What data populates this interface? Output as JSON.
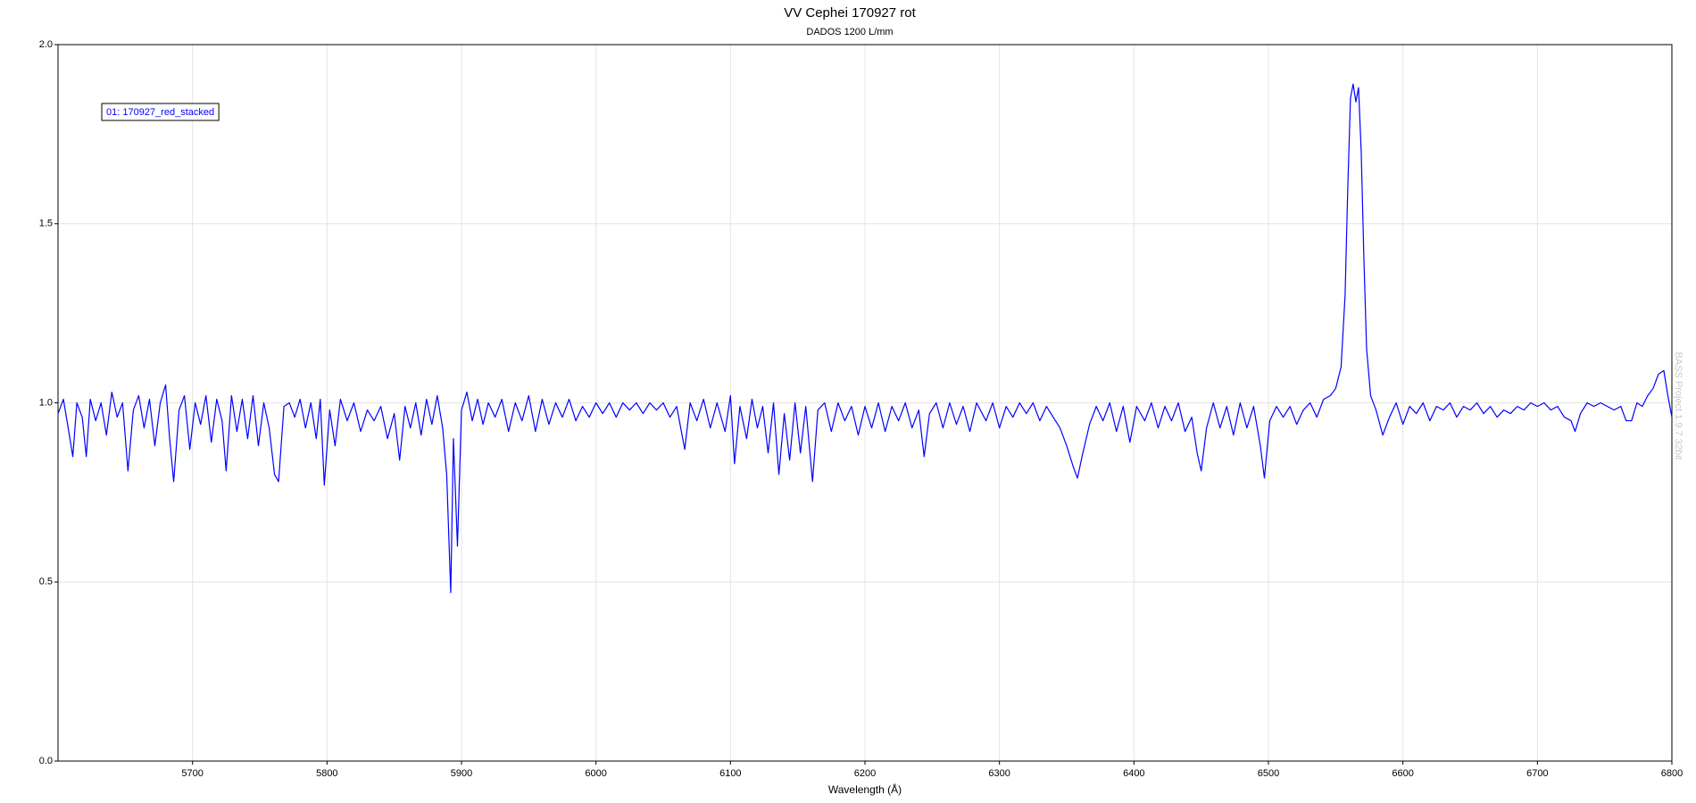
{
  "chart_data": {
    "type": "line",
    "title": "VV Cephei 170927 rot",
    "subtitle": "DADOS 1200 L/mm",
    "x_label": "Wavelength (Å)",
    "watermark": "BASS Project 1.9.7 32bit",
    "xlim": [
      5600,
      6800
    ],
    "ylim": [
      0,
      2
    ],
    "xticks": [
      5700,
      5800,
      5900,
      6000,
      6100,
      6200,
      6300,
      6400,
      6500,
      6600,
      6700,
      6800
    ],
    "yticks": [
      {
        "value": 0,
        "label": "0.0"
      },
      {
        "value": 0.5,
        "label": "0.5"
      },
      {
        "value": 1,
        "label": "1.0"
      },
      {
        "value": 1.5,
        "label": "1.5"
      },
      {
        "value": 2,
        "label": "2.0"
      }
    ],
    "grid": true,
    "legend": "upper left",
    "x": [
      5600,
      5604,
      5608,
      5611,
      5614,
      5618,
      5621,
      5624,
      5628,
      5632,
      5636,
      5640,
      5644,
      5648,
      5652,
      5656,
      5660,
      5664,
      5668,
      5672,
      5676,
      5680,
      5683,
      5686,
      5690,
      5694,
      5698,
      5702,
      5706,
      5710,
      5714,
      5718,
      5722,
      5725,
      5729,
      5733,
      5737,
      5741,
      5745,
      5749,
      5753,
      5757,
      5761,
      5764,
      5768,
      5772,
      5776,
      5780,
      5784,
      5788,
      5792,
      5795,
      5798,
      5802,
      5806,
      5810,
      5815,
      5820,
      5825,
      5830,
      5835,
      5840,
      5845,
      5850,
      5854,
      5858,
      5862,
      5866,
      5870,
      5874,
      5878,
      5882,
      5886,
      5889,
      5892,
      5894,
      5897,
      5900,
      5904,
      5908,
      5912,
      5916,
      5920,
      5925,
      5930,
      5935,
      5940,
      5945,
      5950,
      5955,
      5960,
      5965,
      5970,
      5975,
      5980,
      5985,
      5990,
      5995,
      6000,
      6005,
      6010,
      6015,
      6020,
      6025,
      6030,
      6035,
      6040,
      6045,
      6050,
      6055,
      6060,
      6066,
      6070,
      6075,
      6080,
      6085,
      6090,
      6096,
      6100,
      6103,
      6107,
      6112,
      6116,
      6120,
      6124,
      6128,
      6132,
      6136,
      6140,
      6144,
      6148,
      6152,
      6156,
      6161,
      6165,
      6170,
      6175,
      6180,
      6185,
      6190,
      6195,
      6200,
      6205,
      6210,
      6215,
      6220,
      6225,
      6230,
      6235,
      6240,
      6244,
      6248,
      6253,
      6258,
      6263,
      6268,
      6273,
      6278,
      6283,
      6290,
      6295,
      6300,
      6305,
      6310,
      6315,
      6320,
      6325,
      6330,
      6335,
      6340,
      6345,
      6350,
      6355,
      6358,
      6362,
      6367,
      6372,
      6377,
      6382,
      6387,
      6392,
      6397,
      6402,
      6408,
      6413,
      6418,
      6423,
      6428,
      6433,
      6438,
      6443,
      6447,
      6450,
      6454,
      6459,
      6464,
      6469,
      6474,
      6479,
      6484,
      6489,
      6494,
      6497,
      6501,
      6506,
      6511,
      6516,
      6521,
      6526,
      6531,
      6536,
      6541,
      6546,
      6550,
      6554,
      6557,
      6559,
      6561,
      6563,
      6565,
      6567,
      6569,
      6571,
      6573,
      6576,
      6580,
      6585,
      6590,
      6595,
      6600,
      6605,
      6610,
      6615,
      6620,
      6625,
      6630,
      6635,
      6640,
      6645,
      6650,
      6655,
      6660,
      6665,
      6670,
      6675,
      6680,
      6685,
      6690,
      6695,
      6700,
      6705,
      6710,
      6715,
      6720,
      6725,
      6728,
      6732,
      6737,
      6742,
      6747,
      6752,
      6757,
      6762,
      6766,
      6770,
      6774,
      6778,
      6782,
      6786,
      6790,
      6794,
      6797,
      6800
    ],
    "series": [
      {
        "name": "01: 170927_red_stacked",
        "color": "#0000ff",
        "values": [
          0.97,
          1.01,
          0.92,
          0.85,
          1.0,
          0.96,
          0.85,
          1.01,
          0.95,
          1.0,
          0.91,
          1.03,
          0.96,
          1.0,
          0.81,
          0.98,
          1.02,
          0.93,
          1.01,
          0.88,
          1.0,
          1.05,
          0.9,
          0.78,
          0.98,
          1.02,
          0.87,
          1.0,
          0.94,
          1.02,
          0.89,
          1.01,
          0.95,
          0.81,
          1.02,
          0.92,
          1.01,
          0.9,
          1.02,
          0.88,
          1.0,
          0.93,
          0.8,
          0.78,
          0.99,
          1.0,
          0.96,
          1.01,
          0.93,
          1.0,
          0.9,
          1.01,
          0.77,
          0.98,
          0.88,
          1.01,
          0.95,
          1.0,
          0.92,
          0.98,
          0.95,
          0.99,
          0.9,
          0.97,
          0.84,
          0.99,
          0.93,
          1.0,
          0.91,
          1.01,
          0.94,
          1.02,
          0.93,
          0.8,
          0.47,
          0.9,
          0.6,
          0.98,
          1.03,
          0.95,
          1.01,
          0.94,
          1.0,
          0.96,
          1.01,
          0.92,
          1.0,
          0.95,
          1.02,
          0.92,
          1.01,
          0.94,
          1.0,
          0.96,
          1.01,
          0.95,
          0.99,
          0.96,
          1.0,
          0.97,
          1.0,
          0.96,
          1.0,
          0.98,
          1.0,
          0.97,
          1.0,
          0.98,
          1.0,
          0.96,
          0.99,
          0.87,
          1.0,
          0.95,
          1.01,
          0.93,
          1.0,
          0.92,
          1.02,
          0.83,
          0.99,
          0.9,
          1.01,
          0.93,
          0.99,
          0.86,
          1.0,
          0.8,
          0.97,
          0.84,
          1.0,
          0.86,
          0.99,
          0.78,
          0.98,
          1.0,
          0.92,
          1.0,
          0.95,
          0.99,
          0.91,
          0.99,
          0.93,
          1.0,
          0.92,
          0.99,
          0.95,
          1.0,
          0.93,
          0.98,
          0.85,
          0.97,
          1.0,
          0.93,
          1.0,
          0.94,
          0.99,
          0.92,
          1.0,
          0.95,
          1.0,
          0.93,
          0.99,
          0.96,
          1.0,
          0.97,
          1.0,
          0.95,
          0.99,
          0.96,
          0.93,
          0.88,
          0.82,
          0.79,
          0.86,
          0.94,
          0.99,
          0.95,
          1.0,
          0.92,
          0.99,
          0.89,
          0.99,
          0.95,
          1.0,
          0.93,
          0.99,
          0.95,
          1.0,
          0.92,
          0.96,
          0.86,
          0.81,
          0.93,
          1.0,
          0.93,
          0.99,
          0.91,
          1.0,
          0.93,
          0.99,
          0.88,
          0.79,
          0.95,
          0.99,
          0.96,
          0.99,
          0.94,
          0.98,
          1.0,
          0.96,
          1.01,
          1.02,
          1.04,
          1.1,
          1.3,
          1.6,
          1.85,
          1.89,
          1.84,
          1.88,
          1.7,
          1.4,
          1.15,
          1.02,
          0.98,
          0.91,
          0.96,
          1.0,
          0.94,
          0.99,
          0.97,
          1.0,
          0.95,
          0.99,
          0.98,
          1.0,
          0.96,
          0.99,
          0.98,
          1.0,
          0.97,
          0.99,
          0.96,
          0.98,
          0.97,
          0.99,
          0.98,
          1.0,
          0.99,
          1.0,
          0.98,
          0.99,
          0.96,
          0.95,
          0.92,
          0.97,
          1.0,
          0.99,
          1.0,
          0.99,
          0.98,
          0.99,
          0.95,
          0.95,
          1.0,
          0.99,
          1.02,
          1.04,
          1.08,
          1.09,
          1.02,
          0.96
        ]
      }
    ]
  }
}
